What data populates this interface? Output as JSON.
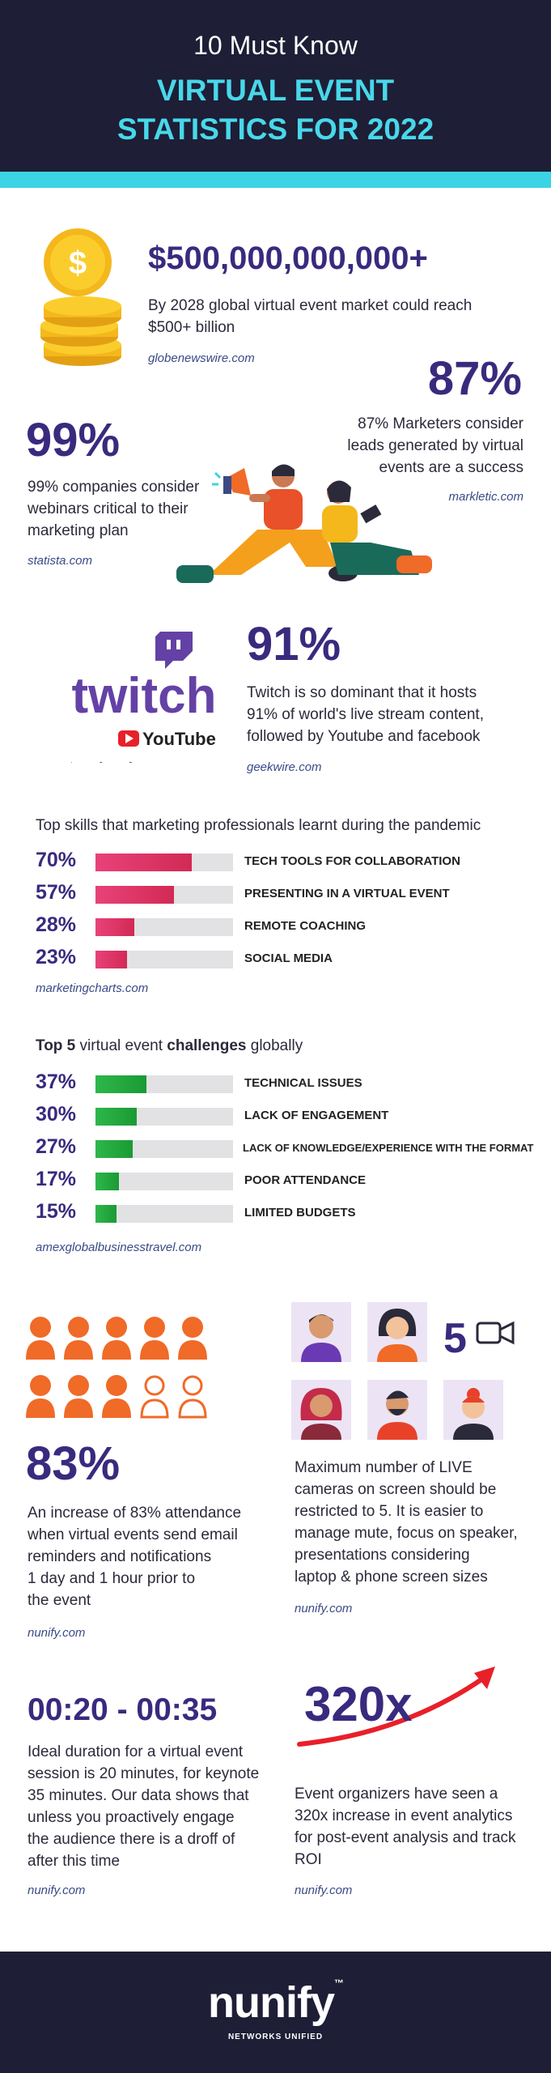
{
  "header": {
    "subtitle": "10 Must Know",
    "title_line1": "VIRTUAL EVENT",
    "title_line2": "STATISTICS FOR 2022"
  },
  "stat_market": {
    "value": "$500,000,000,000+",
    "text_line1": "By 2028 global virtual event market could reach",
    "text_line2": "$500+ billion",
    "source": "globenewswire.com"
  },
  "stat_leads": {
    "value": "87%",
    "text_line1": "87% Marketers consider",
    "text_line2": "leads generated by virtual",
    "text_line3": "events are a success",
    "source": "markletic.com"
  },
  "stat_webinars": {
    "value": "99%",
    "text_line1": "99% companies consider",
    "text_line2": "webinars critical to their",
    "text_line3": "marketing plan",
    "source": "statista.com"
  },
  "stat_twitch": {
    "value": "91%",
    "text_line1": "Twitch is so dominant that it hosts",
    "text_line2": "91% of world's live stream content,",
    "text_line3": "followed by Youtube and facebook",
    "source": "geekwire.com",
    "logo_twitch": "twitch",
    "logo_youtube": "YouTube",
    "logo_facebook": "facebook"
  },
  "skills": {
    "title": "Top skills that marketing  professionals learnt during the pandemic",
    "items": [
      {
        "pct": "70%",
        "value": 70,
        "label": "TECH TOOLS FOR COLLABORATION"
      },
      {
        "pct": "57%",
        "value": 57,
        "label": "PRESENTING IN A VIRTUAL EVENT"
      },
      {
        "pct": "28%",
        "value": 28,
        "label": "REMOTE COACHING"
      },
      {
        "pct": "23%",
        "value": 23,
        "label": "SOCIAL MEDIA"
      }
    ],
    "source": "marketingcharts.com"
  },
  "challenges": {
    "title_pre": "Top 5",
    "title_mid": " virtual event ",
    "title_bold": "challenges",
    "title_post": " globally",
    "items": [
      {
        "pct": "37%",
        "value": 37,
        "label": "TECHNICAL ISSUES"
      },
      {
        "pct": "30%",
        "value": 30,
        "label": "LACK OF ENGAGEMENT"
      },
      {
        "pct": "27%",
        "value": 27,
        "label": "LACK OF KNOWLEDGE/EXPERIENCE WITH THE FORMAT"
      },
      {
        "pct": "17%",
        "value": 17,
        "label": "POOR ATTENDANCE"
      },
      {
        "pct": "15%",
        "value": 15,
        "label": "LIMITED BUDGETS"
      }
    ],
    "source": "amexglobalbusinesstravel.com"
  },
  "stat_attendance": {
    "value": "83%",
    "text_line1": "An increase of 83% attendance",
    "text_line2": "when virtual events send email",
    "text_line3": "reminders and notifications",
    "text_line4": "1 day and 1 hour prior to",
    "text_line5": "the event",
    "source": "nunify.com"
  },
  "stat_cameras": {
    "value": "5",
    "text_line1": "Maximum number of LIVE",
    "text_line2": "cameras on screen should be",
    "text_line3": "restricted to 5. It is easier to",
    "text_line4": "manage mute, focus on speaker,",
    "text_line5": "presentations considering",
    "text_line6": "laptop & phone screen sizes",
    "source": "nunify.com"
  },
  "stat_duration": {
    "value": "00:20 - 00:35",
    "text_line1": "Ideal duration for a virtual event",
    "text_line2": "session is 20 minutes, for keynote",
    "text_line3": "35 minutes. Our data shows that",
    "text_line4": "unless you proactively engage",
    "text_line5": "the audience there is a droff of",
    "text_line6": "after this time",
    "source": "nunify.com"
  },
  "stat_analytics": {
    "value": "320x",
    "text_line1": "Event organizers have seen a",
    "text_line2": "320x increase in event analytics",
    "text_line3": "for post-event analysis and track",
    "text_line4": "ROI",
    "source": "nunify.com"
  },
  "footer": {
    "logo": "nunify",
    "tm": "™",
    "tagline": "NETWORKS UNIFIED"
  },
  "colors": {
    "dark_navy": "#1e1e36",
    "cyan": "#3bd4e4",
    "purple": "#3a2a7e",
    "twitch_purple": "#6441a5",
    "orange": "#f06a28",
    "red_bar": "#d22a54",
    "green_bar": "#1a9a34"
  },
  "icons": [
    "coin-stack-icon",
    "megaphone-people-illustration",
    "person-icon",
    "camera-icon",
    "avatar-icon",
    "arrow-up-icon"
  ]
}
